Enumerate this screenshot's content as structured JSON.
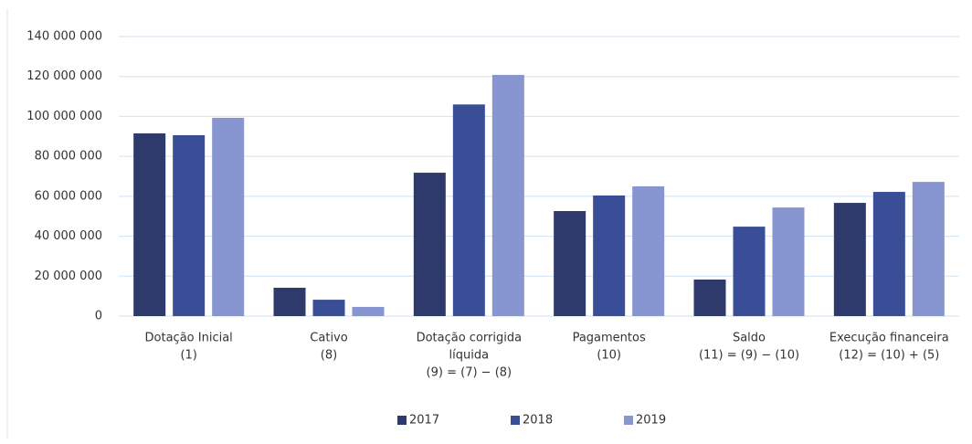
{
  "chart_data": {
    "type": "bar",
    "categories": [
      [
        "Dotação Inicial",
        "(1)"
      ],
      [
        "Cativo",
        "(8)"
      ],
      [
        "Dotação corrigida",
        "líquida",
        "(9) = (7) − (8)"
      ],
      [
        "Pagamentos",
        "(10)"
      ],
      [
        "Saldo",
        "(11) = (9) − (10)"
      ],
      [
        "Execução financeira",
        "(12) = (10) + (5)"
      ]
    ],
    "series": [
      {
        "name": "2017",
        "color": "#2e3a6b",
        "values": [
          91500000,
          14200000,
          71800000,
          52600000,
          18300000,
          56700000
        ]
      },
      {
        "name": "2018",
        "color": "#3a4e98",
        "values": [
          90600000,
          8200000,
          106000000,
          60400000,
          44800000,
          62200000
        ]
      },
      {
        "name": "2019",
        "color": "#8796d0",
        "values": [
          99300000,
          4600000,
          120800000,
          65000000,
          54400000,
          67200000
        ]
      }
    ],
    "ylim": [
      0,
      140000000
    ],
    "yticks": [
      0,
      {
        "value": 20000000,
        "label": "20 000 000"
      },
      {
        "value": 40000000,
        "label": "40 000 000"
      },
      {
        "value": 60000000,
        "label": "60 000 000"
      },
      {
        "value": 80000000,
        "label": "80 000 000"
      },
      {
        "value": 100000000,
        "label": "100 000 000"
      },
      {
        "value": 120000000,
        "label": "120 000 000"
      },
      {
        "value": 140000000,
        "label": "140 000 000"
      }
    ],
    "grid": true,
    "legend": "bottom"
  }
}
